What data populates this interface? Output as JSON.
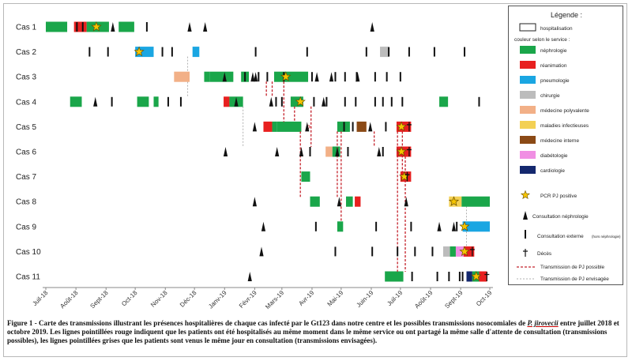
{
  "chart_data": {
    "type": "timeline",
    "x_start": "2018-07-01",
    "x_end": "2019-10-01",
    "xticks": [
      "Juil-18",
      "Août-18",
      "Sept-18",
      "Oct-18",
      "Nov-18",
      "Déc-18",
      "Janv-19",
      "Févr-19",
      "Mars-19",
      "Avr-19",
      "Mai-19",
      "Juin-19",
      "Juil-19",
      "Août-19",
      "Sept-19",
      "Oct-19"
    ],
    "cases": [
      "Cas 1",
      "Cas 2",
      "Cas 3",
      "Cas 4",
      "Cas 5",
      "Cas 6",
      "Cas 7",
      "Cas 8",
      "Cas 9",
      "Cas 10",
      "Cas 11"
    ],
    "services": {
      "nephro": {
        "label": "néphrologie",
        "color": "#1aa64a"
      },
      "rea": {
        "label": "réanimation",
        "color": "#e8201f"
      },
      "pneumo": {
        "label": "pneumologie",
        "color": "#1aa6e2"
      },
      "chir": {
        "label": "chirurgie",
        "color": "#bcbcbc"
      },
      "medpoly": {
        "label": "médecine polyvalente",
        "color": "#f2b087"
      },
      "malinf": {
        "label": "maladies infectieuses",
        "color": "#f3d054"
      },
      "medint": {
        "label": "médecine interne",
        "color": "#8b4a16"
      },
      "diabeto": {
        "label": "diabétologie",
        "color": "#f08fe3"
      },
      "cardio": {
        "label": "cardiologie",
        "color": "#14286e"
      }
    },
    "hospitalizations": [
      {
        "case": 0,
        "start": "2018-07-01",
        "end": "2018-07-23",
        "service": "nephro"
      },
      {
        "case": 0,
        "start": "2018-07-30",
        "end": "2018-08-12",
        "service": "rea"
      },
      {
        "case": 0,
        "start": "2018-08-12",
        "end": "2018-09-04",
        "service": "nephro"
      },
      {
        "case": 0,
        "start": "2018-09-14",
        "end": "2018-09-30",
        "service": "nephro"
      },
      {
        "case": 1,
        "start": "2018-10-01",
        "end": "2018-10-20",
        "service": "pneumo"
      },
      {
        "case": 1,
        "start": "2018-11-29",
        "end": "2018-12-06",
        "service": "pneumo"
      },
      {
        "case": 1,
        "start": "2019-06-10",
        "end": "2019-06-19",
        "service": "chir"
      },
      {
        "case": 2,
        "start": "2018-11-10",
        "end": "2018-11-26",
        "service": "medpoly"
      },
      {
        "case": 2,
        "start": "2018-12-11",
        "end": "2018-12-17",
        "service": "nephro"
      },
      {
        "case": 2,
        "start": "2018-12-17",
        "end": "2019-01-10",
        "service": "nephro"
      },
      {
        "case": 2,
        "start": "2019-01-18",
        "end": "2019-01-26",
        "service": "nephro"
      },
      {
        "case": 2,
        "start": "2019-02-21",
        "end": "2019-03-28",
        "service": "nephro"
      },
      {
        "case": 3,
        "start": "2018-07-26",
        "end": "2018-08-07",
        "service": "nephro"
      },
      {
        "case": 3,
        "start": "2018-10-03",
        "end": "2018-10-15",
        "service": "nephro"
      },
      {
        "case": 3,
        "start": "2018-10-20",
        "end": "2018-10-25",
        "service": "nephro"
      },
      {
        "case": 3,
        "start": "2018-12-31",
        "end": "2019-01-06",
        "service": "rea"
      },
      {
        "case": 3,
        "start": "2019-01-06",
        "end": "2019-01-20",
        "service": "nephro"
      },
      {
        "case": 3,
        "start": "2019-03-10",
        "end": "2019-03-17",
        "service": "nephro"
      },
      {
        "case": 3,
        "start": "2019-03-17",
        "end": "2019-03-23",
        "service": "nephro"
      },
      {
        "case": 3,
        "start": "2019-08-10",
        "end": "2019-08-19",
        "service": "nephro"
      },
      {
        "case": 4,
        "start": "2019-02-10",
        "end": "2019-02-19",
        "service": "rea"
      },
      {
        "case": 4,
        "start": "2019-02-19",
        "end": "2019-02-24",
        "service": "nephro"
      },
      {
        "case": 4,
        "start": "2019-02-24",
        "end": "2019-03-21",
        "service": "nephro"
      },
      {
        "case": 4,
        "start": "2019-04-27",
        "end": "2019-05-10",
        "service": "nephro"
      },
      {
        "case": 4,
        "start": "2019-05-17",
        "end": "2019-05-27",
        "service": "medint"
      },
      {
        "case": 4,
        "start": "2019-06-27",
        "end": "2019-07-12",
        "service": "rea"
      },
      {
        "case": 5,
        "start": "2019-04-15",
        "end": "2019-04-22",
        "service": "medpoly"
      },
      {
        "case": 5,
        "start": "2019-04-22",
        "end": "2019-04-30",
        "service": "nephro"
      },
      {
        "case": 5,
        "start": "2019-06-27",
        "end": "2019-07-12",
        "service": "rea"
      },
      {
        "case": 6,
        "start": "2019-03-21",
        "end": "2019-03-30",
        "service": "nephro"
      },
      {
        "case": 6,
        "start": "2019-07-01",
        "end": "2019-07-12",
        "service": "rea"
      },
      {
        "case": 7,
        "start": "2019-03-30",
        "end": "2019-04-09",
        "service": "nephro"
      },
      {
        "case": 7,
        "start": "2019-05-06",
        "end": "2019-05-13",
        "service": "nephro"
      },
      {
        "case": 7,
        "start": "2019-05-15",
        "end": "2019-05-21",
        "service": "rea"
      },
      {
        "case": 7,
        "start": "2019-08-20",
        "end": "2019-09-02",
        "service": "malinf"
      },
      {
        "case": 7,
        "start": "2019-09-02",
        "end": "2019-10-01",
        "service": "nephro"
      },
      {
        "case": 8,
        "start": "2019-04-27",
        "end": "2019-05-03",
        "service": "nephro"
      },
      {
        "case": 8,
        "start": "2019-09-03",
        "end": "2019-10-01",
        "service": "pneumo"
      },
      {
        "case": 9,
        "start": "2019-08-14",
        "end": "2019-08-21",
        "service": "chir"
      },
      {
        "case": 9,
        "start": "2019-08-21",
        "end": "2019-08-27",
        "service": "nephro"
      },
      {
        "case": 9,
        "start": "2019-08-27",
        "end": "2019-09-04",
        "service": "diabeto"
      },
      {
        "case": 9,
        "start": "2019-09-04",
        "end": "2019-09-15",
        "service": "rea"
      },
      {
        "case": 10,
        "start": "2019-06-15",
        "end": "2019-07-04",
        "service": "nephro"
      },
      {
        "case": 10,
        "start": "2019-09-07",
        "end": "2019-09-13",
        "service": "cardio"
      },
      {
        "case": 10,
        "start": "2019-09-13",
        "end": "2019-09-20",
        "service": "nephro"
      },
      {
        "case": 10,
        "start": "2019-09-20",
        "end": "2019-09-28",
        "service": "rea"
      }
    ],
    "pcr_positive": [
      {
        "case": 0,
        "date": "2018-08-22"
      },
      {
        "case": 1,
        "date": "2018-10-05"
      },
      {
        "case": 2,
        "date": "2019-03-05"
      },
      {
        "case": 3,
        "date": "2019-03-20"
      },
      {
        "case": 4,
        "date": "2019-07-02"
      },
      {
        "case": 5,
        "date": "2019-07-02"
      },
      {
        "case": 6,
        "date": "2019-07-05"
      },
      {
        "case": 7,
        "date": "2019-08-25"
      },
      {
        "case": 8,
        "date": "2019-09-05"
      },
      {
        "case": 9,
        "date": "2019-09-05"
      },
      {
        "case": 10,
        "date": "2019-09-17"
      }
    ],
    "deaths": [
      {
        "case": 4,
        "date": "2019-07-10"
      },
      {
        "case": 5,
        "date": "2019-07-10"
      },
      {
        "case": 6,
        "date": "2019-07-08"
      },
      {
        "case": 9,
        "date": "2019-09-13"
      },
      {
        "case": 10,
        "date": "2019-09-28"
      }
    ],
    "consult_nephro": [
      {
        "case": 0,
        "dates": [
          "2018-09-08",
          "2018-11-26",
          "2018-12-12",
          "2019-06-02"
        ]
      },
      {
        "case": 2,
        "dates": [
          "2019-01-01",
          "2019-01-30",
          "2019-02-02",
          "2019-04-06",
          "2019-04-21",
          "2019-05-18"
        ]
      },
      {
        "case": 3,
        "dates": [
          "2018-08-21",
          "2019-01-13",
          "2019-02-18",
          "2019-04-13"
        ]
      },
      {
        "case": 4,
        "dates": [
          "2019-02-01",
          "2019-03-27",
          "2019-05-31"
        ]
      },
      {
        "case": 5,
        "dates": [
          "2019-01-02",
          "2019-02-24",
          "2019-03-21",
          "2019-04-27",
          "2019-06-09"
        ]
      },
      {
        "case": 7,
        "dates": [
          "2019-02-01",
          "2019-04-29",
          "2019-07-07"
        ]
      },
      {
        "case": 8,
        "dates": [
          "2019-02-10",
          "2019-08-10",
          "2019-08-25"
        ]
      },
      {
        "case": 9,
        "dates": [
          "2019-02-08"
        ]
      },
      {
        "case": 10,
        "dates": [
          "2019-01-27"
        ]
      }
    ],
    "consult_externe": [
      {
        "case": 0,
        "dates": [
          "2018-08-02",
          "2018-08-08",
          "2018-10-13"
        ]
      },
      {
        "case": 1,
        "dates": [
          "2018-08-15",
          "2018-09-03",
          "2018-10-29",
          "2018-11-08",
          "2019-02-02",
          "2019-03-27",
          "2019-05-27",
          "2019-06-19",
          "2019-07-10",
          "2019-08-05",
          "2019-09-05"
        ]
      },
      {
        "case": 2,
        "dates": [
          "2019-01-22",
          "2019-02-05",
          "2019-02-14",
          "2019-03-03",
          "2019-04-01",
          "2019-04-25",
          "2019-05-05",
          "2019-05-17",
          "2019-06-05",
          "2019-06-17",
          "2019-07-01"
        ]
      },
      {
        "case": 3,
        "dates": [
          "2018-09-07",
          "2018-11-04",
          "2018-11-17",
          "2019-02-23",
          "2019-03-01",
          "2019-04-03",
          "2019-04-16",
          "2019-05-05",
          "2019-05-16",
          "2019-06-05",
          "2019-06-13",
          "2019-06-22",
          "2019-07-03",
          "2019-09-20"
        ]
      },
      {
        "case": 4,
        "dates": [
          "2019-05-04",
          "2019-05-13",
          "2019-06-16"
        ]
      },
      {
        "case": 5,
        "dates": [
          "2019-03-30",
          "2019-05-08",
          "2019-06-13"
        ]
      },
      {
        "case": 8,
        "dates": [
          "2019-04-05",
          "2019-06-06",
          "2019-07-12",
          "2019-08-28"
        ]
      },
      {
        "case": 9,
        "dates": [
          "2019-04-25",
          "2019-06-02",
          "2019-06-28",
          "2019-07-16",
          "2019-08-03"
        ]
      },
      {
        "case": 10,
        "dates": [
          "2019-07-13",
          "2019-08-08",
          "2019-08-20",
          "2019-08-31",
          "2019-09-03"
        ]
      }
    ],
    "transmission_possible": [
      {
        "from": 2,
        "to": 3,
        "date": "2019-02-13"
      },
      {
        "from": 2,
        "to": 3,
        "date": "2019-02-19"
      },
      {
        "from": 2,
        "to": 4,
        "date": "2019-03-03"
      },
      {
        "from": 3,
        "to": 4,
        "date": "2019-03-14"
      },
      {
        "from": 3,
        "to": 5,
        "date": "2019-03-31"
      },
      {
        "from": 4,
        "to": 7,
        "date": "2019-03-20"
      },
      {
        "from": 4,
        "to": 7,
        "date": "2019-04-27"
      },
      {
        "from": 4,
        "to": 8,
        "date": "2019-05-01"
      },
      {
        "from": 4,
        "to": 5,
        "date": "2019-06-04"
      },
      {
        "from": 4,
        "to": 6,
        "date": "2019-07-03"
      },
      {
        "from": 4,
        "to": 10,
        "date": "2019-06-28"
      },
      {
        "from": 5,
        "to": 10,
        "date": "2019-07-06"
      }
    ],
    "transmission_envisagee": [
      {
        "from": 1,
        "to": 3,
        "date": "2018-11-24"
      },
      {
        "from": 3,
        "to": 5,
        "date": "2019-01-20"
      },
      {
        "from": 7,
        "to": 9,
        "date": "2019-09-07"
      }
    ],
    "annotation": "?"
  },
  "legend": {
    "title": "Légende :",
    "hospitalisation": "hospitalisation",
    "service_heading": "couleur selon le service :",
    "services": [
      {
        "label": "néphrologie",
        "color": "#1aa64a"
      },
      {
        "label": "réanimation",
        "color": "#e8201f"
      },
      {
        "label": "pneumologie",
        "color": "#1aa6e2"
      },
      {
        "label": "chirurgie",
        "color": "#bcbcbc"
      },
      {
        "label": "médecine polyvalente",
        "color": "#f2b087"
      },
      {
        "label": "maladies infectieuses",
        "color": "#f3d054"
      },
      {
        "label": "médecine interne",
        "color": "#8b4a16"
      },
      {
        "label": "diabétologie",
        "color": "#f08fe3"
      },
      {
        "label": "cardiologie",
        "color": "#14286e"
      }
    ],
    "pcr": "PCR PJ positive",
    "consult_nephro": "Consultation néphrologie",
    "consult_externe": "Consultation externe",
    "consult_externe_note": "(hors néphrologie)",
    "deces": "Décès",
    "trans_possible": "Transmission de PJ possible",
    "trans_envisagee": "Transmission de PJ envisagée"
  },
  "caption": {
    "bold_lead": "Figure 1 - Carte des transmissions illustrant les présences hospitalières de chaque cas infecté par le Gt123 dans notre centre et les possibles transmissions nosocomiales de",
    "species": "P. jirovecii",
    "rest": "entre juillet 2018 et octobre 2019. Les lignes pointillées rouge indiquent que les patients ont été hospitalisés au même moment dans le même service ou ont partagé la même salle d'attente de consultation (transmissions possibles), les lignes pointillées grises que les patients sont venus le même jour en consultation (transmissions envisagées)."
  }
}
